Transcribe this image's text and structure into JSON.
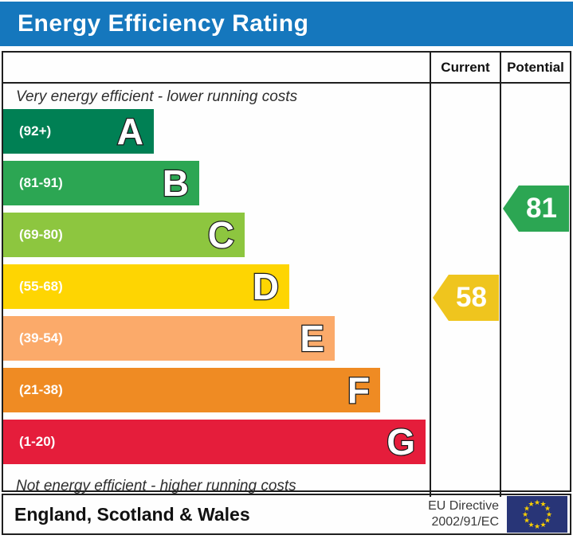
{
  "title": "Energy Efficiency Rating",
  "header": {
    "current_label": "Current",
    "potential_label": "Potential"
  },
  "notes": {
    "top": "Very energy efficient - lower running costs",
    "bottom": "Not energy efficient - higher running costs"
  },
  "bands": [
    {
      "letter": "A",
      "range": "(92+)",
      "color": "#008054"
    },
    {
      "letter": "B",
      "range": "(81-91)",
      "color": "#2ca653"
    },
    {
      "letter": "C",
      "range": "(69-80)",
      "color": "#8dc63f"
    },
    {
      "letter": "D",
      "range": "(55-68)",
      "color": "#fed502"
    },
    {
      "letter": "E",
      "range": "(39-54)",
      "color": "#fbaa6a"
    },
    {
      "letter": "F",
      "range": "(21-38)",
      "color": "#ef8b23"
    },
    {
      "letter": "G",
      "range": "(1-20)",
      "color": "#e51d3b"
    }
  ],
  "ratings": {
    "current": {
      "value": "58",
      "band": "D",
      "color": "#efc51e"
    },
    "potential": {
      "value": "81",
      "band": "B",
      "color": "#2ca653"
    }
  },
  "footer": {
    "region": "England, Scotland & Wales",
    "directive_line1": "EU Directive",
    "directive_line2": "2002/91/EC"
  },
  "colors": {
    "title_bg": "#1577bd",
    "border": "#1f1f1f",
    "eu_flag_bg": "#283577",
    "eu_star": "#f8ce00"
  },
  "chart_data": {
    "type": "bar",
    "title": "Energy Efficiency Rating",
    "orientation": "horizontal",
    "categories": [
      "A",
      "B",
      "C",
      "D",
      "E",
      "F",
      "G"
    ],
    "band_ranges": [
      {
        "band": "A",
        "min": 92,
        "max": 100
      },
      {
        "band": "B",
        "min": 81,
        "max": 91
      },
      {
        "band": "C",
        "min": 69,
        "max": 80
      },
      {
        "band": "D",
        "min": 55,
        "max": 68
      },
      {
        "band": "E",
        "min": 39,
        "max": 54
      },
      {
        "band": "F",
        "min": 21,
        "max": 38
      },
      {
        "band": "G",
        "min": 1,
        "max": 20
      }
    ],
    "series": [
      {
        "name": "Current",
        "value": 58,
        "band": "D"
      },
      {
        "name": "Potential",
        "value": 81,
        "band": "B"
      }
    ],
    "annotations": [
      "Very energy efficient - lower running costs",
      "Not energy efficient - higher running costs"
    ],
    "footnote": "England, Scotland & Wales — EU Directive 2002/91/EC"
  }
}
